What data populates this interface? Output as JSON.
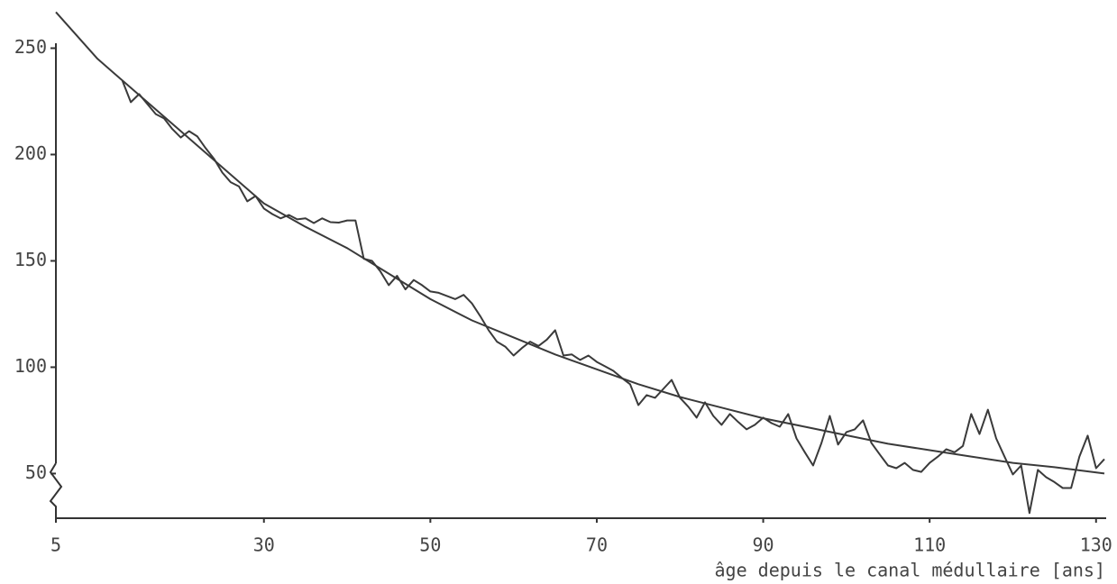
{
  "chart_data": {
    "type": "line",
    "x_label": "âge depuis le canal médullaire [ans]",
    "series": [
      {
        "color": "#3a3a3a",
        "x": [
          13,
          14,
          15,
          16,
          17,
          18,
          19,
          20,
          21,
          22,
          23,
          24,
          25,
          26,
          27,
          28,
          29,
          30,
          31,
          32,
          33,
          34,
          35,
          36,
          37,
          38,
          39,
          40,
          41,
          42,
          43,
          44,
          45,
          46,
          47,
          48,
          49,
          50,
          51,
          52,
          53,
          54,
          55,
          56,
          57,
          58,
          59,
          60,
          61,
          62,
          63,
          64,
          65,
          66,
          67,
          68,
          69,
          70,
          71,
          72,
          73,
          74,
          75,
          76,
          77,
          78,
          79,
          80,
          81,
          82,
          83,
          84,
          85,
          86,
          87,
          88,
          89,
          90,
          91,
          92,
          93,
          94,
          95,
          96,
          97,
          98,
          99,
          100,
          101,
          102,
          103,
          104,
          105,
          106,
          107,
          108,
          109,
          110,
          111,
          112,
          113,
          114,
          115,
          116,
          117,
          118,
          119,
          120,
          121,
          122,
          123,
          124,
          125,
          126,
          127,
          128,
          129,
          130,
          131
        ],
        "values": [
          234.7,
          224.6,
          228.4,
          223.7,
          219,
          217,
          212,
          208,
          211,
          208.5,
          203,
          198,
          191.5,
          187,
          185,
          178,
          180.5,
          174.6,
          172,
          170,
          171.6,
          169.5,
          170,
          167.8,
          170,
          168.2,
          168,
          169,
          169,
          151,
          150,
          145,
          138.6,
          143,
          136.6,
          141,
          138.6,
          135.6,
          135,
          133.5,
          132,
          134,
          130,
          124,
          117.4,
          112,
          109.7,
          105.5,
          109,
          112,
          110,
          113,
          117.4,
          105.5,
          106,
          103.4,
          105.5,
          102.5,
          100.4,
          98.3,
          95,
          92,
          82.2,
          86.9,
          85.6,
          89.8,
          94,
          85.6,
          81.4,
          76.3,
          83.5,
          77.1,
          72.9,
          78,
          74.2,
          70.8,
          72.9,
          76.3,
          73.7,
          72,
          78,
          66.5,
          60,
          53.8,
          64.4,
          77.1,
          63.6,
          69.5,
          70.8,
          75,
          64.4,
          59,
          53.8,
          52.5,
          55,
          51.7,
          50.8,
          55,
          58,
          61.4,
          60,
          63,
          78,
          68.6,
          80,
          66.5,
          58,
          49.6,
          53.8,
          31.4,
          51.7,
          48.3,
          46,
          43.2,
          43.2,
          58,
          67.8,
          52.5,
          56.8
        ]
      },
      {
        "color": "#3a3a3a",
        "x": [
          5,
          10,
          15,
          20,
          25,
          30,
          35,
          40,
          45,
          50,
          55,
          60,
          65,
          70,
          75,
          80,
          85,
          90,
          95,
          100,
          105,
          110,
          115,
          120,
          125,
          131
        ],
        "values": [
          267,
          245,
          228,
          211,
          194,
          177,
          166,
          156,
          144,
          132,
          122,
          114,
          106,
          99,
          92,
          86,
          81,
          76,
          72,
          68,
          64,
          61,
          58,
          55,
          53,
          50
        ]
      }
    ],
    "xlim": [
      5,
      131
    ],
    "xticks": [
      5,
      30,
      50,
      70,
      90,
      110,
      130
    ],
    "ylim": [
      29,
      268
    ],
    "yticks": [
      50,
      100,
      150,
      200,
      250
    ],
    "grid": false
  }
}
